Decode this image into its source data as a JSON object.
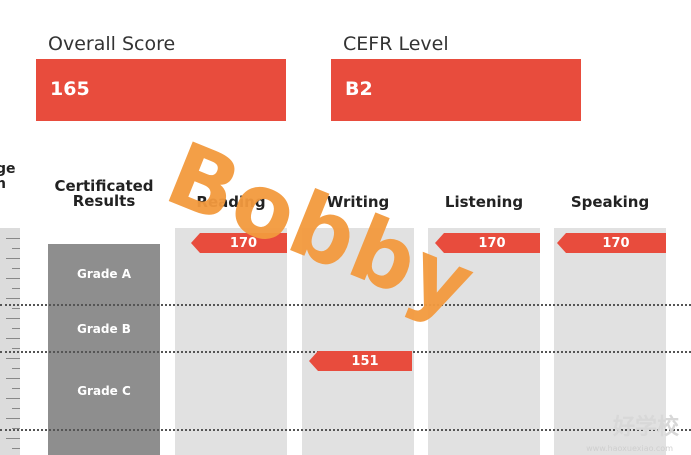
{
  "overall": {
    "label": "Overall Score",
    "value": "165"
  },
  "cefr": {
    "label": "CEFR Level",
    "value": "B2"
  },
  "columns": {
    "cut_off_header": "ge\nn",
    "certificated": "Certificated\nResults",
    "reading": "Reading",
    "writing": "Writing",
    "listening": "Listening",
    "speaking": "Speaking"
  },
  "grades": [
    "Grade A",
    "Grade B",
    "Grade C"
  ],
  "scores": {
    "reading": "170",
    "writing": "151",
    "listening": "170",
    "speaking": "170"
  },
  "watermark": "Bobby",
  "logo": {
    "text": "好学校",
    "sub": "www.haoxuexiao.com"
  },
  "colors": {
    "accent": "#e84c3d",
    "watermark": "#f39a3e",
    "grade_gray": "#8e8e8e",
    "column_gray": "#e1e1e1"
  }
}
